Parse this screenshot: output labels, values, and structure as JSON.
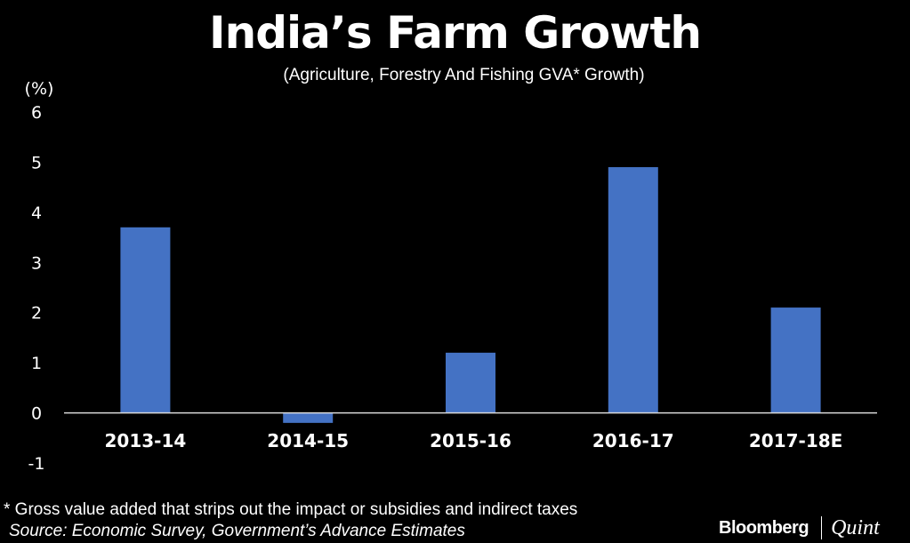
{
  "chart_data": {
    "type": "bar",
    "title": "India’s Farm Growth",
    "subtitle": "(Agriculture, Forestry And Fishing GVA* Growth)",
    "ylabel": "(%)",
    "xlabel": "",
    "categories": [
      "2013-14",
      "2014-15",
      "2015-16",
      "2016-17",
      "2017-18E"
    ],
    "values": [
      3.7,
      -0.2,
      1.2,
      4.9,
      2.1
    ],
    "ylim": [
      -1,
      6
    ],
    "yticks": [
      "6",
      "5",
      "4",
      "3",
      "2",
      "1",
      "0",
      "-1"
    ],
    "bar_color": "#4472C4",
    "grid": false,
    "legend": "none"
  },
  "footnote": "* Gross value added that strips out the impact or subsidies and indirect taxes",
  "source": "Source: Economic Survey, Government’s Advance Estimates",
  "logo": {
    "brand": "Bloomberg",
    "partner": "Quint"
  }
}
